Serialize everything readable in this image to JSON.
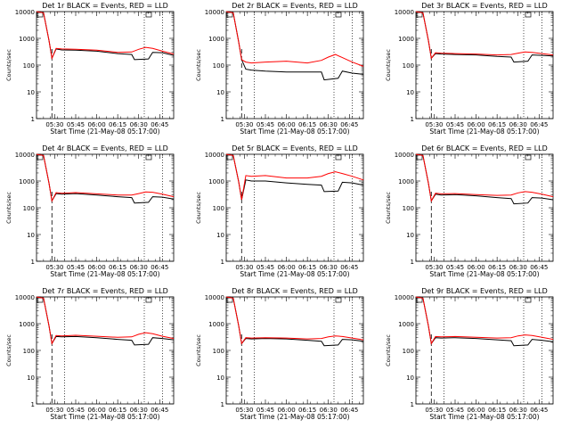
{
  "chart_data": [
    {
      "type": "line",
      "title": "Det 1r BLACK = Events, RED = LLD",
      "xlabel": "Start Time (21-May-08 05:17:00)",
      "ylabel": "Counts/sec",
      "x_tick_labels": [
        "05:30",
        "05:45",
        "06:00",
        "06:15",
        "06:30",
        "06:45"
      ],
      "y_tick_labels": [
        "1",
        "10",
        "100",
        "1000",
        "10000"
      ],
      "xlim": [
        "05:17",
        "06:55"
      ],
      "ylim": [
        1,
        10000
      ],
      "y_scale": "log",
      "grid": false,
      "markers": {
        "dashed_vertical": "05:28",
        "dotted_vertical": [
          "05:37",
          "06:34",
          "06:47"
        ]
      },
      "series": [
        {
          "name": "Events",
          "color": "#000000",
          "x": [
            "05:17",
            "05:22",
            "05:26",
            "05:28",
            "05:31",
            "05:35",
            "05:45",
            "06:00",
            "06:15",
            "06:25",
            "06:27",
            "06:37",
            "06:40",
            "06:47",
            "06:55"
          ],
          "values": [
            10000,
            9000,
            800,
            180,
            400,
            370,
            360,
            330,
            270,
            250,
            160,
            170,
            300,
            290,
            230
          ]
        },
        {
          "name": "LLD",
          "color": "#ff0000",
          "x": [
            "05:17",
            "05:22",
            "05:26",
            "05:28",
            "05:31",
            "05:35",
            "05:45",
            "06:00",
            "06:15",
            "06:25",
            "06:30",
            "06:35",
            "06:40",
            "06:47",
            "06:55"
          ],
          "values": [
            10000,
            9000,
            800,
            180,
            420,
            400,
            390,
            360,
            300,
            310,
            390,
            460,
            420,
            330,
            260
          ]
        }
      ]
    },
    {
      "type": "line",
      "title": "Det 2r BLACK = Events, RED = LLD",
      "xlabel": "Start Time (21-May-08 05:17:00)",
      "ylabel": "Counts/sec",
      "x_tick_labels": [
        "05:30",
        "05:45",
        "06:00",
        "06:15",
        "06:30",
        "06:45"
      ],
      "y_tick_labels": [
        "1",
        "10",
        "100",
        "1000",
        "10000"
      ],
      "xlim": [
        "05:17",
        "06:55"
      ],
      "ylim": [
        1,
        10000
      ],
      "y_scale": "log",
      "grid": false,
      "markers": {
        "dashed_vertical": "05:28",
        "dotted_vertical": [
          "05:37",
          "06:34",
          "06:47"
        ]
      },
      "series": [
        {
          "name": "Events",
          "color": "#000000",
          "x": [
            "05:17",
            "05:22",
            "05:26",
            "05:28",
            "05:31",
            "05:35",
            "05:45",
            "06:00",
            "06:15",
            "06:25",
            "06:27",
            "06:37",
            "06:40",
            "06:47",
            "06:55"
          ],
          "values": [
            10000,
            9000,
            700,
            160,
            70,
            65,
            60,
            55,
            55,
            55,
            28,
            32,
            60,
            50,
            45
          ]
        },
        {
          "name": "LLD",
          "color": "#ff0000",
          "x": [
            "05:17",
            "05:22",
            "05:26",
            "05:28",
            "05:31",
            "05:35",
            "05:45",
            "06:00",
            "06:15",
            "06:25",
            "06:30",
            "06:35",
            "06:40",
            "06:47",
            "06:55"
          ],
          "values": [
            10000,
            9000,
            700,
            160,
            130,
            120,
            130,
            140,
            120,
            150,
            200,
            250,
            190,
            130,
            90
          ]
        }
      ]
    },
    {
      "type": "line",
      "title": "Det 3r BLACK = Events, RED = LLD",
      "xlabel": "Start Time (21-May-08 05:17:00)",
      "ylabel": "Counts/sec",
      "x_tick_labels": [
        "05:30",
        "05:45",
        "06:00",
        "06:15",
        "06:30",
        "06:45"
      ],
      "y_tick_labels": [
        "1",
        "10",
        "100",
        "1000",
        "10000"
      ],
      "xlim": [
        "05:17",
        "06:55"
      ],
      "ylim": [
        1,
        10000
      ],
      "y_scale": "log",
      "grid": false,
      "markers": {
        "dashed_vertical": "05:28",
        "dotted_vertical": [
          "05:37",
          "06:34",
          "06:47"
        ]
      },
      "series": [
        {
          "name": "Events",
          "color": "#000000",
          "x": [
            "05:17",
            "05:22",
            "05:26",
            "05:28",
            "05:31",
            "05:35",
            "05:45",
            "06:00",
            "06:15",
            "06:25",
            "06:27",
            "06:37",
            "06:40",
            "06:47",
            "06:55"
          ],
          "values": [
            10000,
            9000,
            800,
            180,
            270,
            260,
            250,
            240,
            210,
            200,
            130,
            140,
            240,
            230,
            220
          ]
        },
        {
          "name": "LLD",
          "color": "#ff0000",
          "x": [
            "05:17",
            "05:22",
            "05:26",
            "05:28",
            "05:31",
            "05:35",
            "05:45",
            "06:00",
            "06:15",
            "06:25",
            "06:30",
            "06:35",
            "06:40",
            "06:47",
            "06:55"
          ],
          "values": [
            10000,
            9000,
            800,
            180,
            290,
            280,
            270,
            260,
            240,
            250,
            280,
            310,
            300,
            270,
            240
          ]
        }
      ]
    },
    {
      "type": "line",
      "title": "Det 4r BLACK = Events, RED = LLD",
      "xlabel": "Start Time (21-May-08 05:17:00)",
      "ylabel": "Counts/sec",
      "x_tick_labels": [
        "05:30",
        "05:45",
        "06:00",
        "06:15",
        "06:30",
        "06:45"
      ],
      "y_tick_labels": [
        "1",
        "10",
        "100",
        "1000",
        "10000"
      ],
      "xlim": [
        "05:17",
        "06:55"
      ],
      "ylim": [
        1,
        10000
      ],
      "y_scale": "log",
      "grid": false,
      "markers": {
        "dashed_vertical": "05:28",
        "dotted_vertical": [
          "05:37",
          "06:34",
          "06:47"
        ]
      },
      "series": [
        {
          "name": "Events",
          "color": "#000000",
          "x": [
            "05:17",
            "05:22",
            "05:26",
            "05:28",
            "05:31",
            "05:35",
            "05:45",
            "06:00",
            "06:15",
            "06:25",
            "06:27",
            "06:37",
            "06:40",
            "06:47",
            "06:55"
          ],
          "values": [
            10000,
            9000,
            800,
            180,
            340,
            320,
            340,
            300,
            260,
            240,
            150,
            160,
            260,
            250,
            210
          ]
        },
        {
          "name": "LLD",
          "color": "#ff0000",
          "x": [
            "05:17",
            "05:22",
            "05:26",
            "05:28",
            "05:31",
            "05:35",
            "05:45",
            "06:00",
            "06:15",
            "06:25",
            "06:30",
            "06:35",
            "06:40",
            "06:47",
            "06:55"
          ],
          "values": [
            10000,
            9000,
            800,
            180,
            370,
            350,
            370,
            330,
            300,
            300,
            340,
            390,
            380,
            320,
            260
          ]
        }
      ]
    },
    {
      "type": "line",
      "title": "Det 5r BLACK = Events, RED = LLD",
      "xlabel": "Start Time (21-May-08 05:17:00)",
      "ylabel": "Counts/sec",
      "x_tick_labels": [
        "05:30",
        "05:45",
        "06:00",
        "06:15",
        "06:30",
        "06:45"
      ],
      "y_tick_labels": [
        "1",
        "10",
        "100",
        "1000",
        "10000"
      ],
      "xlim": [
        "05:17",
        "06:55"
      ],
      "ylim": [
        1,
        10000
      ],
      "y_scale": "log",
      "grid": false,
      "markers": {
        "dashed_vertical": "05:28",
        "dotted_vertical": [
          "05:37",
          "06:34",
          "06:47"
        ]
      },
      "series": [
        {
          "name": "Events",
          "color": "#000000",
          "x": [
            "05:17",
            "05:22",
            "05:26",
            "05:28",
            "05:31",
            "05:35",
            "05:45",
            "06:00",
            "06:15",
            "06:25",
            "06:27",
            "06:37",
            "06:40",
            "06:47",
            "06:55"
          ],
          "values": [
            10000,
            9000,
            900,
            200,
            1100,
            1000,
            1000,
            850,
            750,
            700,
            400,
            420,
            900,
            850,
            700
          ]
        },
        {
          "name": "LLD",
          "color": "#ff0000",
          "x": [
            "05:17",
            "05:22",
            "05:26",
            "05:28",
            "05:31",
            "05:35",
            "05:45",
            "06:00",
            "06:15",
            "06:25",
            "06:30",
            "06:35",
            "06:40",
            "06:47",
            "06:55"
          ],
          "values": [
            10000,
            9000,
            900,
            200,
            1600,
            1500,
            1600,
            1300,
            1300,
            1500,
            1900,
            2200,
            1900,
            1500,
            1100
          ]
        }
      ]
    },
    {
      "type": "line",
      "title": "Det 6r BLACK = Events, RED = LLD",
      "xlabel": "Start Time (21-May-08 05:17:00)",
      "ylabel": "Counts/sec",
      "x_tick_labels": [
        "05:30",
        "05:45",
        "06:00",
        "06:15",
        "06:30",
        "06:45"
      ],
      "y_tick_labels": [
        "1",
        "10",
        "100",
        "1000",
        "10000"
      ],
      "xlim": [
        "05:17",
        "06:55"
      ],
      "ylim": [
        1,
        10000
      ],
      "y_scale": "log",
      "grid": false,
      "markers": {
        "dashed_vertical": "05:28",
        "dotted_vertical": [
          "05:37",
          "06:34",
          "06:47"
        ]
      },
      "series": [
        {
          "name": "Events",
          "color": "#000000",
          "x": [
            "05:17",
            "05:22",
            "05:26",
            "05:28",
            "05:31",
            "05:35",
            "05:45",
            "06:00",
            "06:15",
            "06:25",
            "06:27",
            "06:37",
            "06:40",
            "06:47",
            "06:55"
          ],
          "values": [
            10000,
            9000,
            800,
            180,
            320,
            300,
            310,
            280,
            240,
            220,
            140,
            150,
            240,
            230,
            200
          ]
        },
        {
          "name": "LLD",
          "color": "#ff0000",
          "x": [
            "05:17",
            "05:22",
            "05:26",
            "05:28",
            "05:31",
            "05:35",
            "05:45",
            "06:00",
            "06:15",
            "06:25",
            "06:30",
            "06:35",
            "06:40",
            "06:47",
            "06:55"
          ],
          "values": [
            10000,
            9000,
            800,
            180,
            350,
            330,
            340,
            310,
            290,
            300,
            360,
            400,
            380,
            320,
            260
          ]
        }
      ]
    },
    {
      "type": "line",
      "title": "Det 7r BLACK = Events, RED = LLD",
      "xlabel": "Start Time (21-May-08 05:17:00)",
      "ylabel": "Counts/sec",
      "x_tick_labels": [
        "05:30",
        "05:45",
        "06:00",
        "06:15",
        "06:30",
        "06:45"
      ],
      "y_tick_labels": [
        "1",
        "10",
        "100",
        "1000",
        "10000"
      ],
      "xlim": [
        "05:17",
        "06:55"
      ],
      "ylim": [
        1,
        10000
      ],
      "y_scale": "log",
      "grid": false,
      "markers": {
        "dashed_vertical": "05:28",
        "dotted_vertical": [
          "05:37",
          "06:34",
          "06:47"
        ]
      },
      "series": [
        {
          "name": "Events",
          "color": "#000000",
          "x": [
            "05:17",
            "05:22",
            "05:26",
            "05:28",
            "05:31",
            "05:35",
            "05:45",
            "06:00",
            "06:15",
            "06:25",
            "06:27",
            "06:37",
            "06:40",
            "06:47",
            "06:55"
          ],
          "values": [
            10000,
            9000,
            800,
            180,
            330,
            320,
            330,
            300,
            260,
            240,
            160,
            170,
            300,
            280,
            250
          ]
        },
        {
          "name": "LLD",
          "color": "#ff0000",
          "x": [
            "05:17",
            "05:22",
            "05:26",
            "05:28",
            "05:31",
            "05:35",
            "05:45",
            "06:00",
            "06:15",
            "06:25",
            "06:30",
            "06:35",
            "06:40",
            "06:47",
            "06:55"
          ],
          "values": [
            10000,
            9000,
            800,
            180,
            360,
            350,
            370,
            340,
            310,
            320,
            400,
            460,
            420,
            340,
            280
          ]
        }
      ]
    },
    {
      "type": "line",
      "title": "Det 8r BLACK = Events, RED = LLD",
      "xlabel": "Start Time (21-May-08 05:17:00)",
      "ylabel": "Counts/sec",
      "x_tick_labels": [
        "05:30",
        "05:45",
        "06:00",
        "06:15",
        "06:30",
        "06:45"
      ],
      "y_tick_labels": [
        "1",
        "10",
        "100",
        "1000",
        "10000"
      ],
      "xlim": [
        "05:17",
        "06:55"
      ],
      "ylim": [
        1,
        10000
      ],
      "y_scale": "log",
      "grid": false,
      "markers": {
        "dashed_vertical": "05:28",
        "dotted_vertical": [
          "05:37",
          "06:34",
          "06:47"
        ]
      },
      "series": [
        {
          "name": "Events",
          "color": "#000000",
          "x": [
            "05:17",
            "05:22",
            "05:26",
            "05:28",
            "05:31",
            "05:35",
            "05:45",
            "06:00",
            "06:15",
            "06:25",
            "06:27",
            "06:37",
            "06:40",
            "06:47",
            "06:55"
          ],
          "values": [
            10000,
            9000,
            800,
            180,
            280,
            270,
            280,
            270,
            240,
            220,
            150,
            160,
            260,
            250,
            220
          ]
        },
        {
          "name": "LLD",
          "color": "#ff0000",
          "x": [
            "05:17",
            "05:22",
            "05:26",
            "05:28",
            "05:31",
            "05:35",
            "05:45",
            "06:00",
            "06:15",
            "06:25",
            "06:30",
            "06:35",
            "06:40",
            "06:47",
            "06:55"
          ],
          "values": [
            10000,
            9000,
            800,
            180,
            300,
            290,
            300,
            290,
            270,
            280,
            320,
            350,
            330,
            290,
            250
          ]
        }
      ]
    },
    {
      "type": "line",
      "title": "Det 9r BLACK = Events, RED = LLD",
      "xlabel": "Start Time (21-May-08 05:17:00)",
      "ylabel": "Counts/sec",
      "x_tick_labels": [
        "05:30",
        "05:45",
        "06:00",
        "06:15",
        "06:30",
        "06:45"
      ],
      "y_tick_labels": [
        "1",
        "10",
        "100",
        "1000",
        "10000"
      ],
      "xlim": [
        "05:17",
        "06:55"
      ],
      "ylim": [
        1,
        10000
      ],
      "y_scale": "log",
      "grid": false,
      "markers": {
        "dashed_vertical": "05:28",
        "dotted_vertical": [
          "05:37",
          "06:34",
          "06:47"
        ]
      },
      "series": [
        {
          "name": "Events",
          "color": "#000000",
          "x": [
            "05:17",
            "05:22",
            "05:26",
            "05:28",
            "05:31",
            "05:35",
            "05:45",
            "06:00",
            "06:15",
            "06:25",
            "06:27",
            "06:37",
            "06:40",
            "06:47",
            "06:55"
          ],
          "values": [
            10000,
            9000,
            800,
            180,
            300,
            290,
            300,
            280,
            250,
            230,
            150,
            160,
            260,
            240,
            210
          ]
        },
        {
          "name": "LLD",
          "color": "#ff0000",
          "x": [
            "05:17",
            "05:22",
            "05:26",
            "05:28",
            "05:31",
            "05:35",
            "05:45",
            "06:00",
            "06:15",
            "06:25",
            "06:30",
            "06:35",
            "06:40",
            "06:47",
            "06:55"
          ],
          "values": [
            10000,
            9000,
            800,
            180,
            330,
            320,
            330,
            310,
            290,
            300,
            350,
            380,
            360,
            310,
            260
          ]
        }
      ]
    }
  ]
}
